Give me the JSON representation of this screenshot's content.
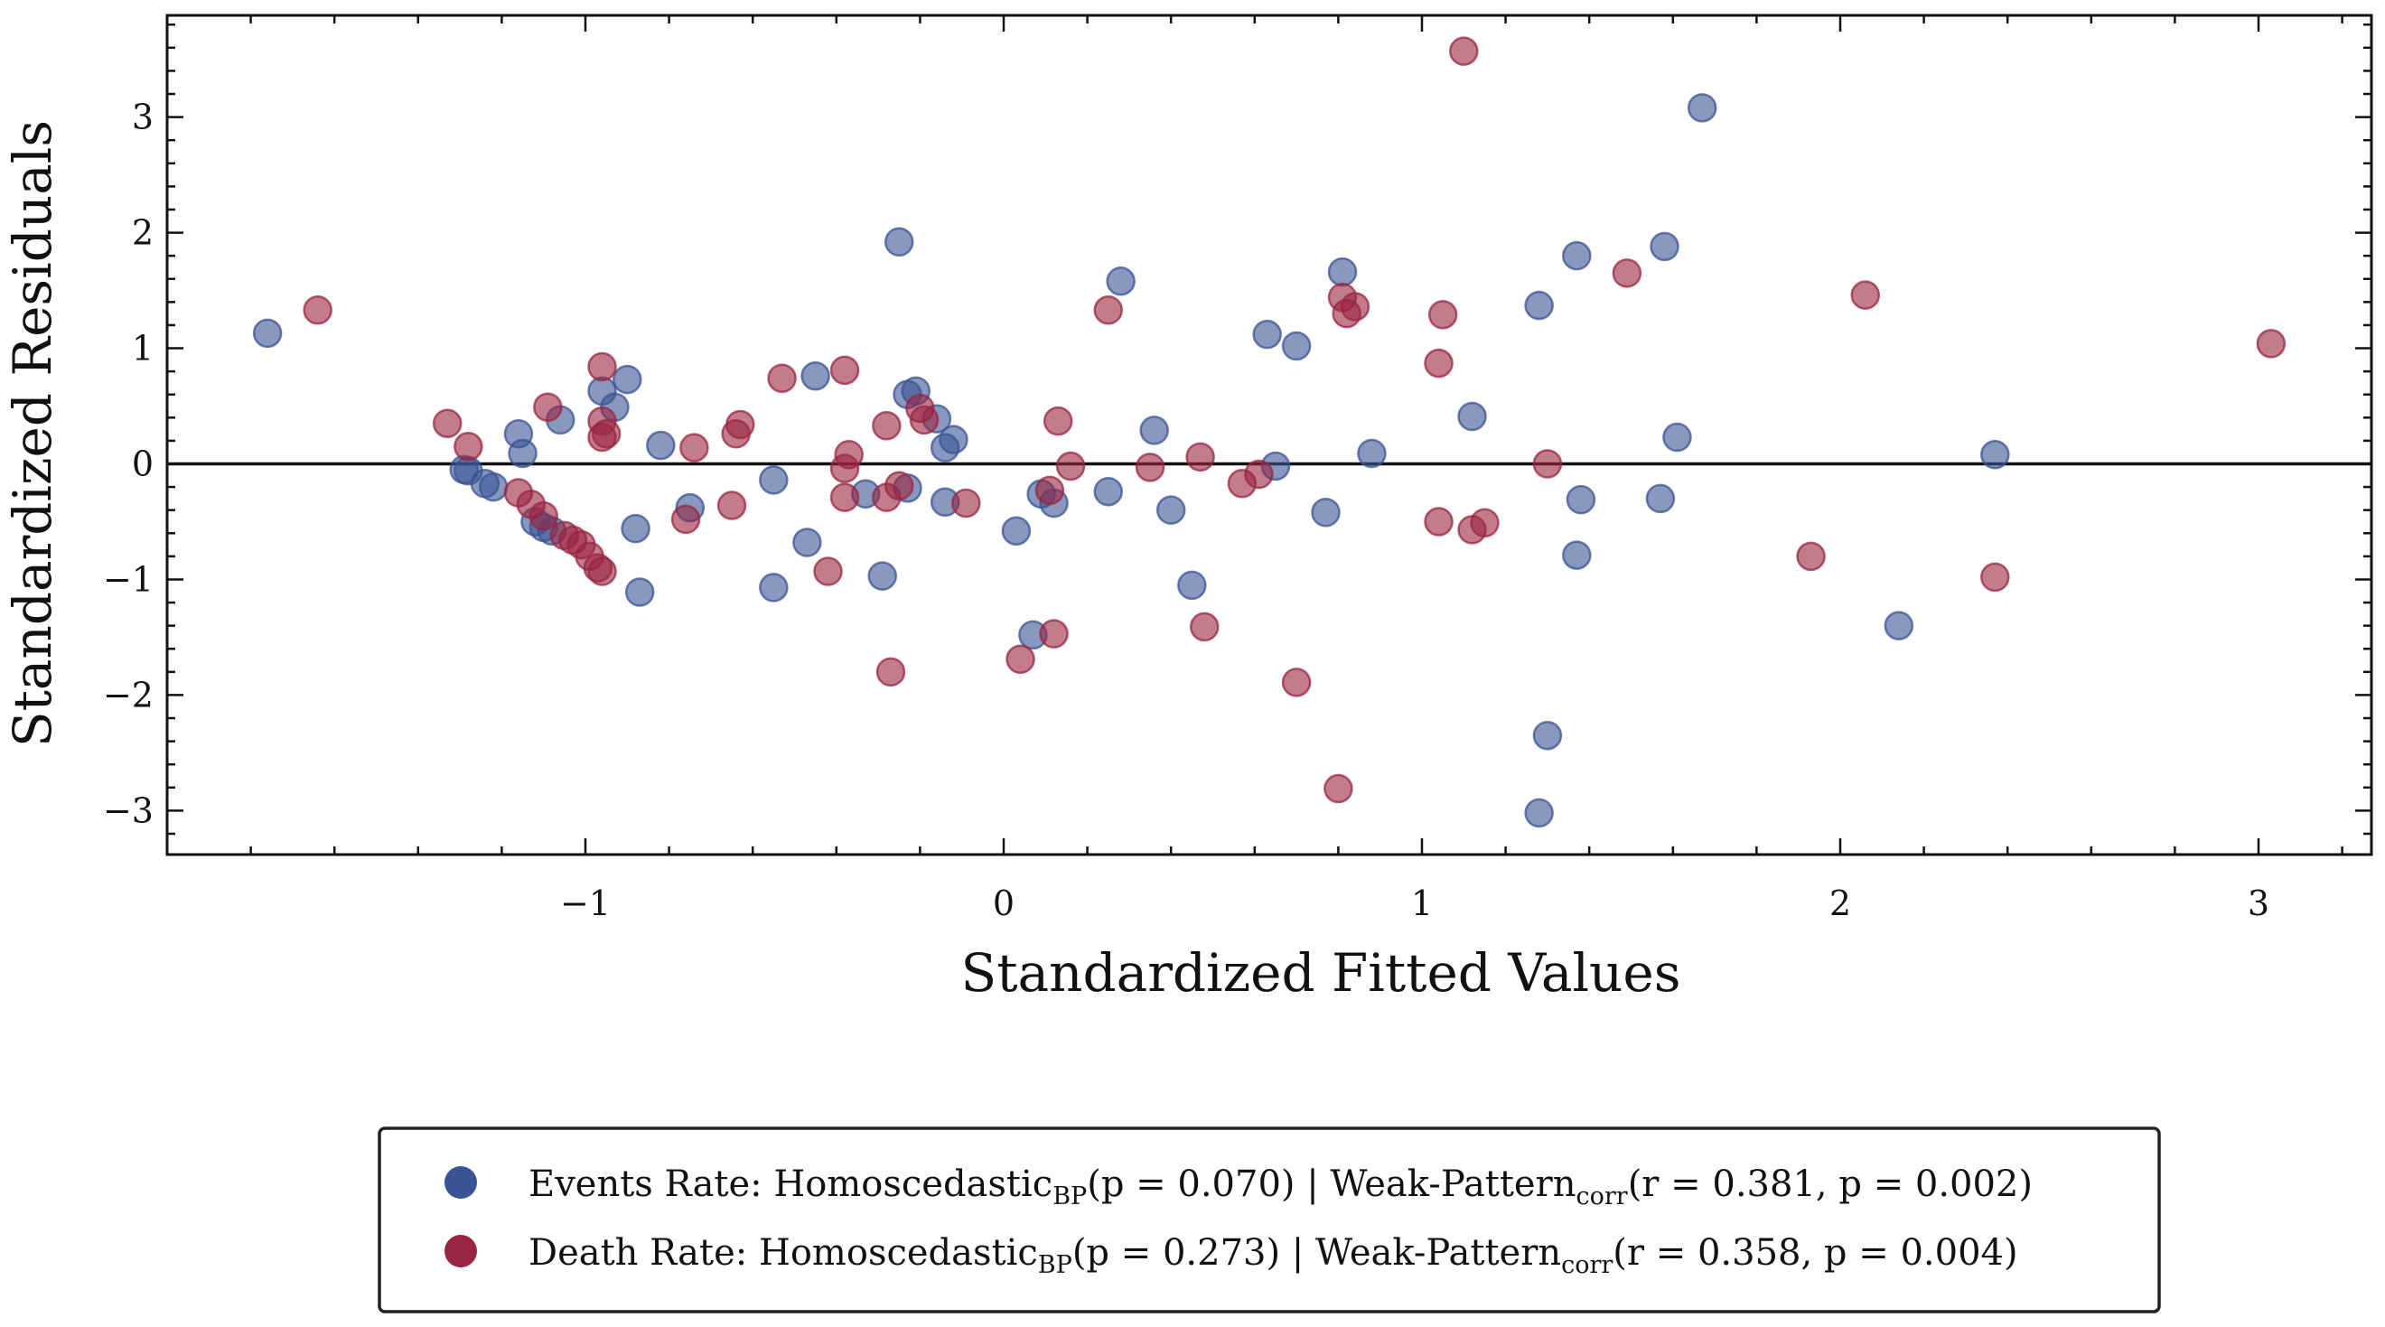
{
  "chart_data": {
    "type": "scatter",
    "xlabel": "Standardized Fitted Values",
    "ylabel": "Standardized Residuals",
    "xlim": [
      -2.0,
      3.27
    ],
    "ylim": [
      -3.38,
      3.88
    ],
    "x_ticks": [
      {
        "value": -1,
        "label": "−1"
      },
      {
        "value": 0,
        "label": "0"
      },
      {
        "value": 1,
        "label": "1"
      },
      {
        "value": 2,
        "label": "2"
      },
      {
        "value": 3,
        "label": "3"
      }
    ],
    "y_ticks": [
      {
        "value": -3,
        "label": "−3"
      },
      {
        "value": -2,
        "label": "−2"
      },
      {
        "value": -1,
        "label": "−1"
      },
      {
        "value": 0,
        "label": "0"
      },
      {
        "value": 1,
        "label": "1"
      },
      {
        "value": 2,
        "label": "2"
      },
      {
        "value": 3,
        "label": "3"
      }
    ],
    "reference_line_y": 0,
    "grid": false,
    "legend_position": "bottom-center, below plot",
    "series": [
      {
        "name": "Events Rate",
        "color": "#3a5394",
        "legend": {
          "prefix": "Events Rate: Homoscedastic",
          "sub1": "BP",
          "mid": "(p = 0.070) | Weak-Pattern",
          "sub2": "corr",
          "suffix": "(r = 0.381, p = 0.002)"
        },
        "points": [
          [
            -1.76,
            1.13
          ],
          [
            -1.29,
            -0.05
          ],
          [
            -1.28,
            -0.06
          ],
          [
            -1.24,
            -0.17
          ],
          [
            -1.22,
            -0.2
          ],
          [
            -1.16,
            0.26
          ],
          [
            -1.15,
            0.09
          ],
          [
            -1.12,
            -0.5
          ],
          [
            -1.1,
            -0.55
          ],
          [
            -1.08,
            -0.58
          ],
          [
            -1.06,
            0.38
          ],
          [
            -0.96,
            0.63
          ],
          [
            -0.93,
            0.49
          ],
          [
            -0.9,
            0.73
          ],
          [
            -0.88,
            -0.56
          ],
          [
            -0.87,
            -1.11
          ],
          [
            -0.82,
            0.16
          ],
          [
            -0.75,
            -0.38
          ],
          [
            -0.55,
            -0.14
          ],
          [
            -0.55,
            -1.07
          ],
          [
            -0.47,
            -0.68
          ],
          [
            -0.45,
            0.76
          ],
          [
            -0.33,
            -0.26
          ],
          [
            -0.29,
            -0.97
          ],
          [
            -0.25,
            1.92
          ],
          [
            -0.23,
            0.6
          ],
          [
            -0.21,
            0.63
          ],
          [
            -0.16,
            0.39
          ],
          [
            -0.14,
            -0.33
          ],
          [
            -0.14,
            0.14
          ],
          [
            -0.12,
            0.21
          ],
          [
            -0.23,
            -0.21
          ],
          [
            0.03,
            -0.58
          ],
          [
            0.07,
            -1.48
          ],
          [
            0.09,
            -0.26
          ],
          [
            0.12,
            -0.34
          ],
          [
            0.25,
            -0.24
          ],
          [
            0.28,
            1.58
          ],
          [
            0.36,
            0.29
          ],
          [
            0.4,
            -0.4
          ],
          [
            0.45,
            -1.05
          ],
          [
            0.63,
            1.12
          ],
          [
            0.65,
            -0.02
          ],
          [
            0.7,
            1.02
          ],
          [
            0.77,
            -0.42
          ],
          [
            0.81,
            1.66
          ],
          [
            0.88,
            0.09
          ],
          [
            1.12,
            0.41
          ],
          [
            1.28,
            1.37
          ],
          [
            1.28,
            -3.02
          ],
          [
            1.3,
            -2.35
          ],
          [
            1.37,
            1.8
          ],
          [
            1.37,
            -0.79
          ],
          [
            1.38,
            -0.31
          ],
          [
            1.57,
            -0.3
          ],
          [
            1.58,
            1.88
          ],
          [
            1.61,
            0.23
          ],
          [
            1.67,
            3.08
          ],
          [
            2.14,
            -1.4
          ],
          [
            2.37,
            0.08
          ]
        ]
      },
      {
        "name": "Death Rate",
        "color": "#9a2540",
        "legend": {
          "prefix": "Death Rate: Homoscedastic",
          "sub1": "BP",
          "mid": "(p = 0.273) | Weak-Pattern",
          "sub2": "corr",
          "suffix": "(r = 0.358, p = 0.004)"
        },
        "points": [
          [
            -1.64,
            1.33
          ],
          [
            -1.33,
            0.35
          ],
          [
            -1.28,
            0.15
          ],
          [
            -1.16,
            -0.25
          ],
          [
            -1.13,
            -0.35
          ],
          [
            -1.1,
            -0.45
          ],
          [
            -1.09,
            0.49
          ],
          [
            -1.05,
            -0.62
          ],
          [
            -1.03,
            -0.66
          ],
          [
            -1.01,
            -0.7
          ],
          [
            -0.99,
            -0.8
          ],
          [
            -0.97,
            -0.9
          ],
          [
            -0.96,
            -0.93
          ],
          [
            -0.96,
            0.37
          ],
          [
            -0.96,
            0.23
          ],
          [
            -0.95,
            0.26
          ],
          [
            -0.96,
            0.84
          ],
          [
            -0.76,
            -0.48
          ],
          [
            -0.74,
            0.14
          ],
          [
            -0.65,
            -0.36
          ],
          [
            -0.64,
            0.26
          ],
          [
            -0.63,
            0.34
          ],
          [
            -0.53,
            0.74
          ],
          [
            -0.42,
            -0.93
          ],
          [
            -0.38,
            0.81
          ],
          [
            -0.37,
            0.08
          ],
          [
            -0.38,
            -0.04
          ],
          [
            -0.38,
            -0.29
          ],
          [
            -0.28,
            0.33
          ],
          [
            -0.28,
            -0.29
          ],
          [
            -0.27,
            -1.8
          ],
          [
            -0.25,
            -0.19
          ],
          [
            -0.2,
            0.48
          ],
          [
            -0.19,
            0.38
          ],
          [
            -0.09,
            -0.34
          ],
          [
            0.04,
            -1.69
          ],
          [
            0.11,
            -0.23
          ],
          [
            0.12,
            -1.47
          ],
          [
            0.13,
            0.37
          ],
          [
            0.16,
            -0.02
          ],
          [
            0.25,
            1.33
          ],
          [
            0.35,
            -0.03
          ],
          [
            0.47,
            0.06
          ],
          [
            0.48,
            -1.41
          ],
          [
            0.57,
            -0.17
          ],
          [
            0.61,
            -0.09
          ],
          [
            0.7,
            -1.89
          ],
          [
            0.8,
            -2.81
          ],
          [
            0.81,
            1.44
          ],
          [
            0.82,
            1.3
          ],
          [
            0.84,
            1.36
          ],
          [
            1.04,
            0.87
          ],
          [
            1.04,
            -0.5
          ],
          [
            1.05,
            1.29
          ],
          [
            1.1,
            3.57
          ],
          [
            1.12,
            -0.57
          ],
          [
            1.15,
            -0.51
          ],
          [
            1.3,
            0.0
          ],
          [
            1.49,
            1.65
          ],
          [
            1.93,
            -0.8
          ],
          [
            2.06,
            1.46
          ],
          [
            2.37,
            -0.98
          ],
          [
            3.03,
            1.04
          ]
        ]
      }
    ]
  }
}
